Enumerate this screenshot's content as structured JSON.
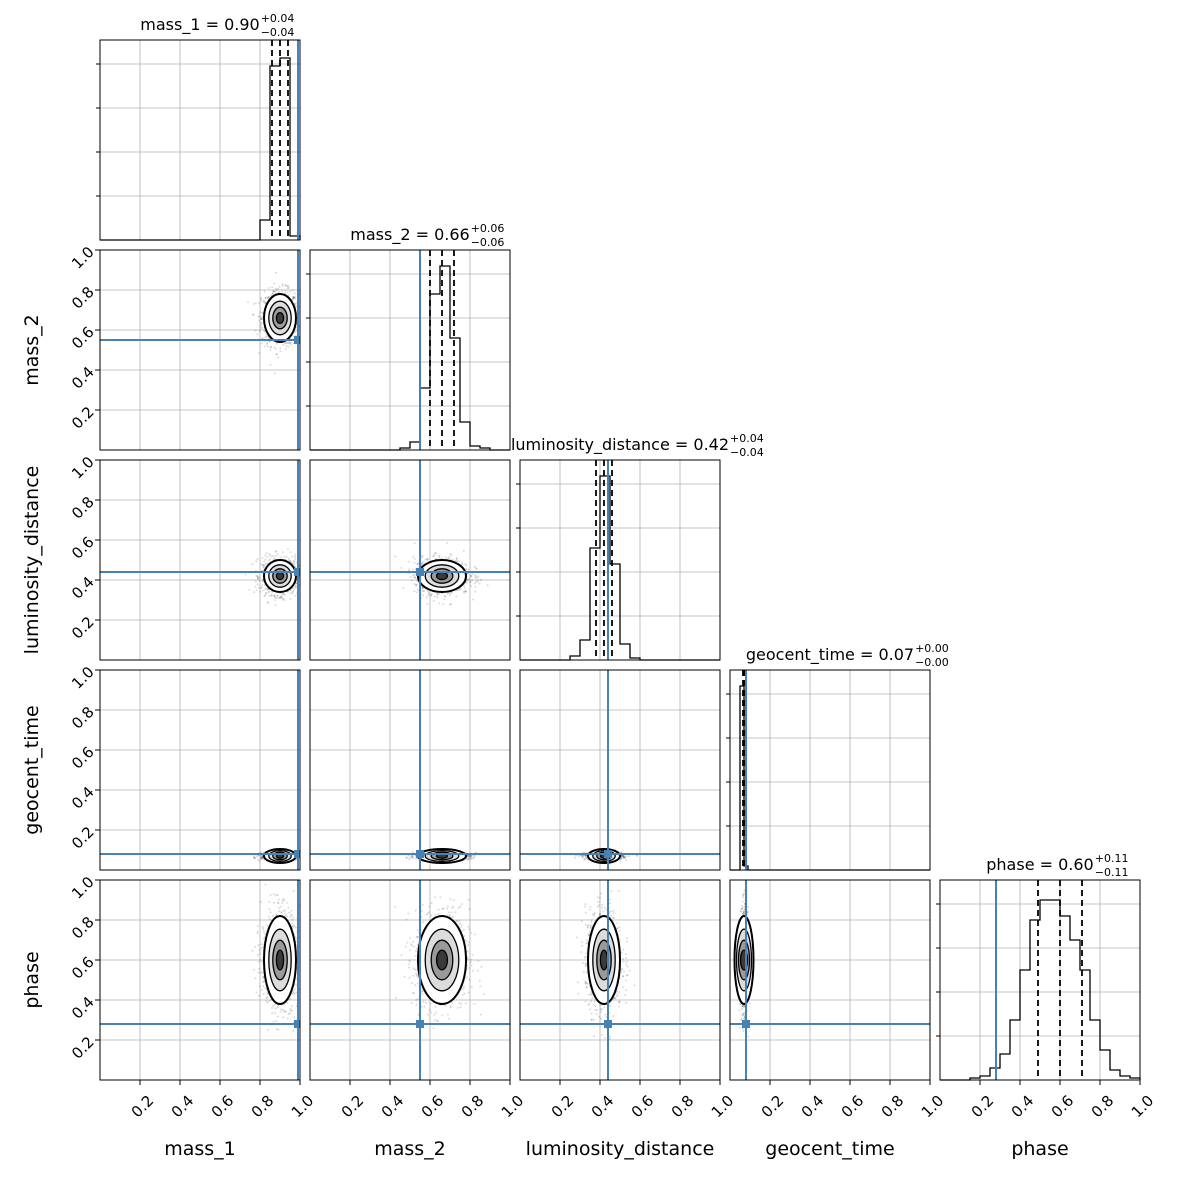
{
  "colors": {
    "truth": "#4682b4",
    "grid": "#b0b0b0",
    "spine": "#000000",
    "hist": "#000000",
    "background": "#ffffff"
  },
  "chart_data": {
    "type": "corner",
    "parameters": [
      "mass_1",
      "mass_2",
      "luminosity_distance",
      "geocent_time",
      "phase"
    ],
    "range": [
      0,
      1
    ],
    "tick_labels": [
      "0.2",
      "0.4",
      "0.6",
      "0.8",
      "1.0"
    ],
    "grid": true,
    "titles": [
      {
        "name": "mass_1",
        "value": "0.90",
        "plus": "+0.04",
        "minus": "−0.04"
      },
      {
        "name": "mass_2",
        "value": "0.66",
        "plus": "+0.06",
        "minus": "−0.06"
      },
      {
        "name": "luminosity_distance",
        "value": "0.42",
        "plus": "+0.04",
        "minus": "−0.04"
      },
      {
        "name": "geocent_time",
        "value": "0.07",
        "plus": "+0.00",
        "minus": "−0.00"
      },
      {
        "name": "phase",
        "value": "0.60",
        "plus": "+0.11",
        "minus": "−0.11"
      }
    ],
    "truths": [
      0.99,
      0.55,
      0.44,
      0.08,
      0.28
    ],
    "posteriors": [
      {
        "mean": 0.9,
        "sd": 0.04,
        "quantiles": [
          0.86,
          0.9,
          0.94
        ]
      },
      {
        "mean": 0.66,
        "sd": 0.06,
        "quantiles": [
          0.6,
          0.66,
          0.72
        ]
      },
      {
        "mean": 0.42,
        "sd": 0.04,
        "quantiles": [
          0.38,
          0.42,
          0.46
        ]
      },
      {
        "mean": 0.07,
        "sd": 0.008,
        "quantiles": [
          0.065,
          0.07,
          0.075
        ]
      },
      {
        "mean": 0.6,
        "sd": 0.11,
        "quantiles": [
          0.49,
          0.6,
          0.71
        ]
      }
    ],
    "histograms": [
      {
        "bins": [
          0.8,
          0.85,
          0.9,
          0.95
        ],
        "heights": [
          0.1,
          0.87,
          0.91,
          0.02
        ]
      },
      {
        "bins": [
          0.45,
          0.5,
          0.55,
          0.6,
          0.65,
          0.7,
          0.75,
          0.8,
          0.85
        ],
        "heights": [
          0.01,
          0.04,
          0.31,
          0.78,
          0.92,
          0.56,
          0.14,
          0.02,
          0.01
        ]
      },
      {
        "bins": [
          0.25,
          0.3,
          0.35,
          0.4,
          0.45,
          0.5,
          0.55
        ],
        "heights": [
          0.02,
          0.1,
          0.56,
          0.92,
          0.48,
          0.08,
          0.01
        ]
      },
      {
        "bins": [
          0.05,
          0.07
        ],
        "heights": [
          0.92,
          0.02
        ]
      },
      {
        "bins": [
          0.15,
          0.2,
          0.25,
          0.3,
          0.35,
          0.4,
          0.45,
          0.5,
          0.55,
          0.6,
          0.65,
          0.7,
          0.75,
          0.8,
          0.85,
          0.9,
          0.95
        ],
        "heights": [
          0.01,
          0.02,
          0.06,
          0.13,
          0.3,
          0.55,
          0.8,
          0.9,
          0.9,
          0.82,
          0.7,
          0.55,
          0.3,
          0.15,
          0.05,
          0.02,
          0.01
        ]
      }
    ]
  }
}
